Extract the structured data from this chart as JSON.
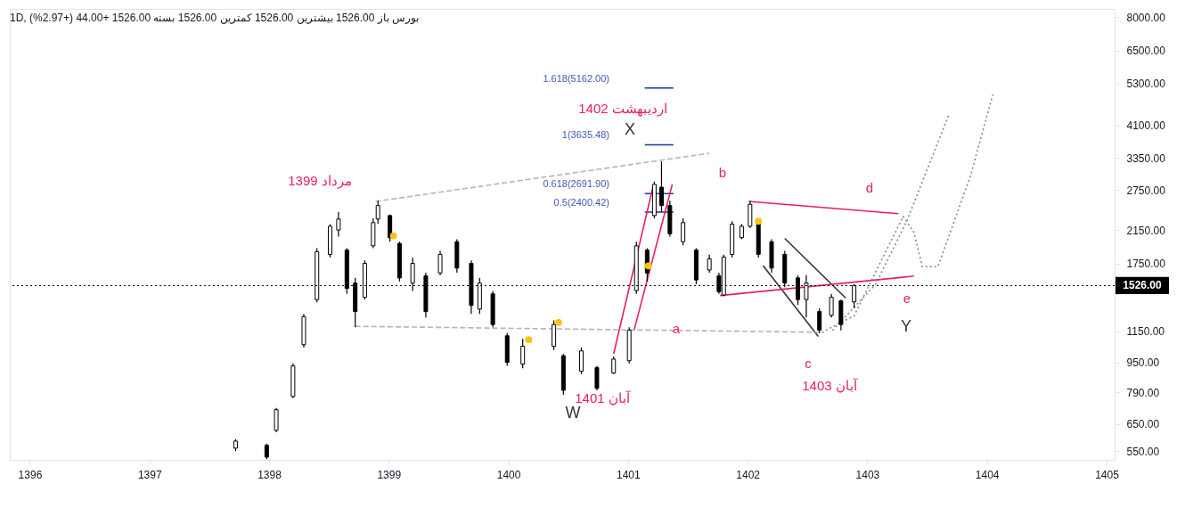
{
  "chart_data": {
    "type": "candlestick",
    "color": "#000000",
    "x": [
      1397.72,
      1397.98,
      1398.06,
      1398.2,
      1398.29,
      1398.4,
      1398.51,
      1398.58,
      1398.65,
      1398.72,
      1398.8,
      1398.87,
      1398.91,
      1399.01,
      1399.09,
      1399.2,
      1399.31,
      1399.43,
      1399.57,
      1399.69,
      1399.76,
      1399.87,
      1399.99,
      1400.12,
      1400.38,
      1400.46,
      1400.61,
      1400.74,
      1400.88,
      1401.01,
      1401.07,
      1401.16,
      1401.22,
      1401.28,
      1401.35,
      1401.46,
      1401.57,
      1401.68,
      1401.76,
      1401.8,
      1401.87,
      1401.95,
      1402.02,
      1402.09,
      1402.2,
      1402.31,
      1402.42,
      1402.49,
      1402.6,
      1402.7,
      1402.78,
      1402.89
    ],
    "ohlc": [
      [
        560,
        592,
        550,
        585
      ],
      [
        570,
        576,
        523,
        530
      ],
      [
        625,
        718,
        618,
        710
      ],
      [
        770,
        945,
        762,
        930
      ],
      [
        1060,
        1282,
        1042,
        1260
      ],
      [
        1400,
        1923,
        1377,
        1880
      ],
      [
        1850,
        2231,
        1815,
        2200
      ],
      [
        2150,
        2404,
        2064,
        2300
      ],
      [
        1900,
        1923,
        1450,
        1500
      ],
      [
        1550,
        1600,
        1180,
        1300
      ],
      [
        1420,
        1783,
        1399,
        1750
      ],
      [
        1950,
        2311,
        1923,
        2250
      ],
      [
        2300,
        2577,
        2231,
        2500
      ],
      [
        2350,
        2364,
        1999,
        2050
      ],
      [
        1980,
        1999,
        1565,
        1600
      ],
      [
        1550,
        1815,
        1477,
        1750
      ],
      [
        1620,
        1653,
        1253,
        1300
      ],
      [
        1650,
        1891,
        1627,
        1850
      ],
      [
        2000,
        2031,
        1653,
        1700
      ],
      [
        1750,
        1783,
        1282,
        1350
      ],
      [
        1320,
        1600,
        1282,
        1550
      ],
      [
        1450,
        1477,
        1180,
        1200
      ],
      [
        1120,
        1139,
        931,
        950
      ],
      [
        940,
        1099,
        917,
        1050
      ],
      [
        1050,
        1231,
        1025,
        1200
      ],
      [
        990,
        1002,
        778,
        800
      ],
      [
        900,
        1042,
        884,
        1020
      ],
      [
        920,
        931,
        800,
        810
      ],
      [
        890,
        985,
        884,
        970
      ],
      [
        960,
        1180,
        945,
        1160
      ],
      [
        1480,
        1999,
        1450,
        1950
      ],
      [
        1900,
        1923,
        1565,
        1650
      ],
      [
        2350,
        2899,
        2311,
        2850
      ],
      [
        2800,
        3283,
        2404,
        2500
      ],
      [
        2500,
        2577,
        2064,
        2100
      ],
      [
        2000,
        2311,
        1956,
        2250
      ],
      [
        1900,
        1923,
        1539,
        1580
      ],
      [
        1680,
        1848,
        1653,
        1800
      ],
      [
        1620,
        1653,
        1450,
        1470
      ],
      [
        1440,
        1848,
        1428,
        1820
      ],
      [
        1850,
        2271,
        1815,
        2230
      ],
      [
        2050,
        2231,
        2031,
        2200
      ],
      [
        2200,
        2577,
        2178,
        2520
      ],
      [
        2250,
        2271,
        1815,
        1850
      ],
      [
        2000,
        2031,
        1653,
        1700
      ],
      [
        1850,
        1891,
        1512,
        1550
      ],
      [
        1600,
        1627,
        1355,
        1400
      ],
      [
        1400,
        1627,
        1253,
        1550
      ],
      [
        1300,
        1326,
        1139,
        1160
      ],
      [
        1270,
        1450,
        1253,
        1420
      ],
      [
        1390,
        1399,
        1158,
        1200
      ],
      [
        1380,
        1539,
        1326,
        1526
      ]
    ],
    "series": [
      {
        "type": "line",
        "color": "#b2b5be",
        "line_style": "dashed",
        "x": [
          1398.89,
          1401.68
        ],
        "values": [
          2564,
          3451
        ]
      },
      {
        "type": "line",
        "color": "#b2b5be",
        "line_style": "dashed",
        "x": [
          1398.72,
          1402.64
        ],
        "values": [
          1187,
          1144
        ]
      },
      {
        "type": "line",
        "color": "#e91e63",
        "line_style": "solid",
        "x": [
          1402.01,
          1403.26
        ],
        "values": [
          2564,
          2378
        ]
      },
      {
        "type": "line",
        "color": "#e91e63",
        "line_style": "solid",
        "x": [
          1401.77,
          1403.39
        ],
        "values": [
          1435,
          1618
        ]
      },
      {
        "type": "line",
        "color": "#e91e63",
        "line_style": "solid",
        "x": [
          1400.88,
          1401.21
        ],
        "values": [
          1002,
          2816
        ]
      },
      {
        "type": "line",
        "color": "#e91e63",
        "line_style": "solid",
        "x": [
          1401.05,
          1401.37
        ],
        "values": [
          1157,
          2849
        ]
      },
      {
        "type": "line",
        "color": "#333333",
        "line_style": "solid",
        "x": [
          1402.31,
          1402.82
        ],
        "values": [
          2042,
          1413
        ]
      },
      {
        "type": "line",
        "color": "#333333",
        "line_style": "solid",
        "x": [
          1402.13,
          1402.59
        ],
        "values": [
          1724,
          1116
        ]
      },
      {
        "type": "line",
        "color": "#888888",
        "line_style": "dotted",
        "x": [
          1402.62,
          1402.89,
          1403.13,
          1403.3,
          1403.39,
          1403.46,
          1403.59,
          1403.86,
          1404.05
        ],
        "values": [
          1144,
          1267,
          1815,
          2338,
          2118,
          1715,
          1715,
          2983,
          4961
        ]
      },
      {
        "type": "line",
        "color": "#888888",
        "line_style": "dotted",
        "x": [
          1402.71,
          1403.07,
          1403.33,
          1403.68
        ],
        "values": [
          1158,
          1539,
          2271,
          4361
        ]
      },
      {
        "type": "line",
        "color": "#1a3a8f",
        "line_style": "solid",
        "x": [
          1401.14,
          1401.38
        ],
        "values": [
          5162,
          5162
        ]
      },
      {
        "type": "line",
        "color": "#1a3a8f",
        "line_style": "solid",
        "x": [
          1401.14,
          1401.38
        ],
        "values": [
          3635.48,
          3635.48
        ]
      },
      {
        "type": "line",
        "color": "#1a3a8f",
        "line_style": "solid",
        "x": [
          1401.14,
          1401.38
        ],
        "values": [
          2691.9,
          2691.9
        ]
      },
      {
        "type": "line",
        "color": "#1a3a8f",
        "line_style": "solid",
        "x": [
          1401.14,
          1401.38
        ],
        "values": [
          2400.42,
          2400.42
        ]
      },
      {
        "type": "scatter",
        "color": "#f5c518",
        "marker": "circle",
        "x": [
          1399.04,
          1400.17,
          1400.42,
          1401.17,
          1402.09
        ],
        "values": [
          2074,
          1093,
          1216,
          1724,
          2271
        ]
      }
    ],
    "ref_lines": [
      {
        "axis": "y",
        "value": 1526,
        "label": "1526.00",
        "color": "#000000",
        "line_style": "dotted"
      }
    ],
    "annotations": [
      "1D, بورس  باز 1526.00  بیشترین 1526.00  کمترین 1526.00  بسته 1526.00  +44.00 (+2.97%)",
      "مرداد 1399",
      "اردیبهشت 1402",
      "X",
      "W",
      "آبان 1401",
      "آبان 1403",
      "Y",
      "a",
      "b",
      "c",
      "d",
      "e",
      "1.618(5162.00)",
      "1(3635.48)",
      "0.618(2691.90)",
      "0.5(2400.42)"
    ],
    "xlim": [
      1395.87,
      1405.03
    ],
    "xticks": [
      1396,
      1397,
      1398,
      1399,
      1400,
      1401,
      1402,
      1403,
      1404,
      1405
    ],
    "ylim": [
      521,
      8406
    ],
    "yticks": [
      {
        "value": 550,
        "label": "550.00"
      },
      {
        "value": 650,
        "label": "650.00"
      },
      {
        "value": 790,
        "label": "790.00"
      },
      {
        "value": 950,
        "label": "950.00"
      },
      {
        "value": 1150,
        "label": "1150.00"
      },
      {
        "value": 1450,
        "label": null
      },
      {
        "value": 1750,
        "label": "1750.00"
      },
      {
        "value": 2150,
        "label": "2150.00"
      },
      {
        "value": 2750,
        "label": "2750.00"
      },
      {
        "value": 3350,
        "label": "3350.00"
      },
      {
        "value": 4100,
        "label": "4100.00"
      },
      {
        "value": 5300,
        "label": "5300.00"
      },
      {
        "value": 6500,
        "label": "6500.00"
      },
      {
        "value": 8000,
        "label": "8000.00"
      }
    ],
    "log": "y",
    "grid": false
  }
}
